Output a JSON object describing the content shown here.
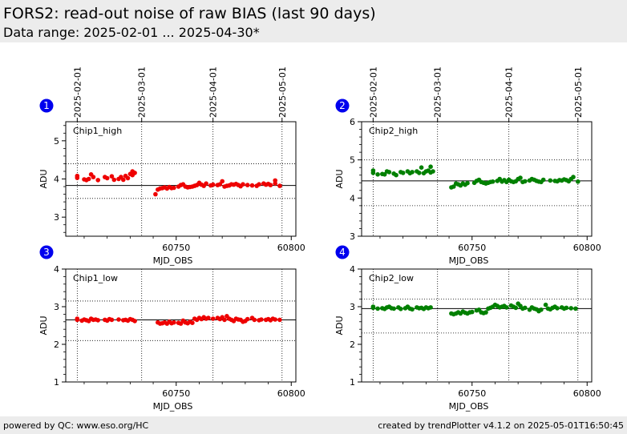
{
  "header": {
    "title": "FORS2: read-out noise of raw BIAS (last 90 days)",
    "subtitle": "Data range: 2025-02-01 ... 2025-04-30*"
  },
  "footer": {
    "left": "powered by QC: www.eso.org/HC",
    "right": "created by trendPlotter v4.1.2 on 2025-05-01T16:50:45"
  },
  "colors": {
    "chip1": "#ee0000",
    "chip2": "#008000",
    "badge": "#0000ee"
  },
  "date_ticks": [
    {
      "label": "2025-02-01",
      "mjd": 60707
    },
    {
      "label": "2025-03-01",
      "mjd": 60735
    },
    {
      "label": "2025-04-01",
      "mjd": 60766
    },
    {
      "label": "2025-05-01",
      "mjd": 60796
    }
  ],
  "chart_data": [
    {
      "type": "scatter",
      "badge": "1",
      "panel_label": "Chip1_high",
      "xlabel": "MJD_OBS",
      "ylabel": "ADU",
      "xlim": [
        60702,
        60802
      ],
      "ylim": [
        2.5,
        5.5
      ],
      "yticks": [
        3,
        4,
        5
      ],
      "xticks": [
        60750,
        60800
      ],
      "reference_lines": {
        "mean": 3.83,
        "lower": 3.49,
        "upper": 4.4
      },
      "color": "#ee0000",
      "points": [
        [
          60707,
          4.08
        ],
        [
          60707,
          4.03
        ],
        [
          60710,
          3.99
        ],
        [
          60711,
          3.97
        ],
        [
          60712,
          4.0
        ],
        [
          60713,
          4.12
        ],
        [
          60714,
          4.05
        ],
        [
          60716,
          3.97
        ],
        [
          60719,
          4.05
        ],
        [
          60720,
          4.02
        ],
        [
          60722,
          4.07
        ],
        [
          60723,
          3.98
        ],
        [
          60725,
          4.0
        ],
        [
          60726,
          4.05
        ],
        [
          60727,
          3.98
        ],
        [
          60728,
          4.08
        ],
        [
          60729,
          4.02
        ],
        [
          60730,
          4.13
        ],
        [
          60731,
          4.2
        ],
        [
          60731,
          4.1
        ],
        [
          60732,
          4.16
        ],
        [
          60741,
          3.6
        ],
        [
          60742,
          3.72
        ],
        [
          60743,
          3.75
        ],
        [
          60744,
          3.76
        ],
        [
          60745,
          3.78
        ],
        [
          60746,
          3.75
        ],
        [
          60747,
          3.79
        ],
        [
          60748,
          3.76
        ],
        [
          60749,
          3.77
        ],
        [
          60751,
          3.8
        ],
        [
          60752,
          3.84
        ],
        [
          60753,
          3.86
        ],
        [
          60754,
          3.8
        ],
        [
          60755,
          3.78
        ],
        [
          60756,
          3.79
        ],
        [
          60757,
          3.8
        ],
        [
          60758,
          3.82
        ],
        [
          60759,
          3.84
        ],
        [
          60760,
          3.9
        ],
        [
          60761,
          3.85
        ],
        [
          60762,
          3.82
        ],
        [
          60763,
          3.88
        ],
        [
          60765,
          3.83
        ],
        [
          60766,
          3.85
        ],
        [
          60768,
          3.84
        ],
        [
          60769,
          3.86
        ],
        [
          60770,
          3.94
        ],
        [
          60771,
          3.8
        ],
        [
          60772,
          3.82
        ],
        [
          60773,
          3.83
        ],
        [
          60774,
          3.86
        ],
        [
          60775,
          3.85
        ],
        [
          60776,
          3.87
        ],
        [
          60777,
          3.84
        ],
        [
          60778,
          3.81
        ],
        [
          60779,
          3.86
        ],
        [
          60781,
          3.84
        ],
        [
          60783,
          3.83
        ],
        [
          60785,
          3.82
        ],
        [
          60786,
          3.86
        ],
        [
          60788,
          3.88
        ],
        [
          60789,
          3.85
        ],
        [
          60790,
          3.87
        ],
        [
          60791,
          3.84
        ],
        [
          60793,
          3.96
        ],
        [
          60793,
          3.88
        ],
        [
          60795,
          3.82
        ]
      ]
    },
    {
      "type": "scatter",
      "badge": "2",
      "panel_label": "Chip2_high",
      "xlabel": "MJD_OBS",
      "ylabel": "ADU",
      "xlim": [
        60702,
        60802
      ],
      "ylim": [
        3,
        6
      ],
      "yticks": [
        3,
        4,
        5,
        6
      ],
      "xticks": [
        60750,
        60800
      ],
      "reference_lines": {
        "mean": 4.45,
        "lower": 3.8,
        "upper": 5.0
      },
      "color": "#008000",
      "points": [
        [
          60707,
          4.72
        ],
        [
          60707,
          4.66
        ],
        [
          60709,
          4.62
        ],
        [
          60711,
          4.63
        ],
        [
          60712,
          4.62
        ],
        [
          60713,
          4.7
        ],
        [
          60714,
          4.68
        ],
        [
          60716,
          4.64
        ],
        [
          60717,
          4.6
        ],
        [
          60719,
          4.68
        ],
        [
          60720,
          4.66
        ],
        [
          60722,
          4.7
        ],
        [
          60723,
          4.65
        ],
        [
          60724,
          4.68
        ],
        [
          60726,
          4.7
        ],
        [
          60727,
          4.66
        ],
        [
          60728,
          4.8
        ],
        [
          60729,
          4.65
        ],
        [
          60730,
          4.7
        ],
        [
          60731,
          4.72
        ],
        [
          60732,
          4.67
        ],
        [
          60732,
          4.82
        ],
        [
          60733,
          4.7
        ],
        [
          60741,
          4.28
        ],
        [
          60742,
          4.3
        ],
        [
          60743,
          4.38
        ],
        [
          60744,
          4.36
        ],
        [
          60745,
          4.33
        ],
        [
          60746,
          4.38
        ],
        [
          60747,
          4.35
        ],
        [
          60748,
          4.39
        ],
        [
          60751,
          4.4
        ],
        [
          60752,
          4.45
        ],
        [
          60753,
          4.48
        ],
        [
          60754,
          4.42
        ],
        [
          60755,
          4.4
        ],
        [
          60756,
          4.38
        ],
        [
          60757,
          4.4
        ],
        [
          60758,
          4.42
        ],
        [
          60759,
          4.43
        ],
        [
          60761,
          4.45
        ],
        [
          60762,
          4.5
        ],
        [
          60763,
          4.43
        ],
        [
          60764,
          4.47
        ],
        [
          60765,
          4.42
        ],
        [
          60766,
          4.48
        ],
        [
          60767,
          4.44
        ],
        [
          60768,
          4.42
        ],
        [
          60769,
          4.44
        ],
        [
          60770,
          4.5
        ],
        [
          60771,
          4.53
        ],
        [
          60772,
          4.42
        ],
        [
          60773,
          4.44
        ],
        [
          60775,
          4.46
        ],
        [
          60776,
          4.5
        ],
        [
          60777,
          4.48
        ],
        [
          60778,
          4.45
        ],
        [
          60779,
          4.43
        ],
        [
          60780,
          4.42
        ],
        [
          60781,
          4.48
        ],
        [
          60784,
          4.46
        ],
        [
          60786,
          4.45
        ],
        [
          60787,
          4.44
        ],
        [
          60788,
          4.47
        ],
        [
          60789,
          4.46
        ],
        [
          60790,
          4.49
        ],
        [
          60791,
          4.47
        ],
        [
          60792,
          4.44
        ],
        [
          60793,
          4.5
        ],
        [
          60794,
          4.55
        ],
        [
          60796,
          4.43
        ]
      ]
    },
    {
      "type": "scatter",
      "badge": "3",
      "panel_label": "Chip1_low",
      "xlabel": "MJD_OBS",
      "ylabel": "ADU",
      "xlim": [
        60702,
        60802
      ],
      "ylim": [
        1,
        4
      ],
      "yticks": [
        1,
        2,
        3,
        4
      ],
      "xticks": [
        60750,
        60800
      ],
      "reference_lines": {
        "mean": 2.65,
        "lower": 2.1,
        "upper": 3.15
      },
      "color": "#ee0000",
      "points": [
        [
          60707,
          2.68
        ],
        [
          60707,
          2.65
        ],
        [
          60709,
          2.63
        ],
        [
          60710,
          2.66
        ],
        [
          60711,
          2.64
        ],
        [
          60712,
          2.62
        ],
        [
          60713,
          2.68
        ],
        [
          60714,
          2.65
        ],
        [
          60715,
          2.66
        ],
        [
          60716,
          2.64
        ],
        [
          60719,
          2.65
        ],
        [
          60720,
          2.63
        ],
        [
          60721,
          2.67
        ],
        [
          60722,
          2.65
        ],
        [
          60725,
          2.66
        ],
        [
          60727,
          2.64
        ],
        [
          60728,
          2.65
        ],
        [
          60729,
          2.63
        ],
        [
          60730,
          2.67
        ],
        [
          60731,
          2.65
        ],
        [
          60732,
          2.62
        ],
        [
          60742,
          2.58
        ],
        [
          60743,
          2.55
        ],
        [
          60744,
          2.56
        ],
        [
          60745,
          2.58
        ],
        [
          60746,
          2.55
        ],
        [
          60747,
          2.6
        ],
        [
          60748,
          2.56
        ],
        [
          60749,
          2.58
        ],
        [
          60751,
          2.57
        ],
        [
          60752,
          2.55
        ],
        [
          60753,
          2.63
        ],
        [
          60754,
          2.58
        ],
        [
          60755,
          2.56
        ],
        [
          60756,
          2.6
        ],
        [
          60757,
          2.57
        ],
        [
          60758,
          2.68
        ],
        [
          60759,
          2.65
        ],
        [
          60760,
          2.7
        ],
        [
          60761,
          2.67
        ],
        [
          60762,
          2.72
        ],
        [
          60763,
          2.68
        ],
        [
          60764,
          2.7
        ],
        [
          60766,
          2.68
        ],
        [
          60768,
          2.7
        ],
        [
          60769,
          2.67
        ],
        [
          60770,
          2.72
        ],
        [
          60771,
          2.65
        ],
        [
          60772,
          2.75
        ],
        [
          60773,
          2.68
        ],
        [
          60774,
          2.65
        ],
        [
          60775,
          2.62
        ],
        [
          60776,
          2.68
        ],
        [
          60777,
          2.66
        ],
        [
          60778,
          2.65
        ],
        [
          60779,
          2.6
        ],
        [
          60780,
          2.62
        ],
        [
          60781,
          2.67
        ],
        [
          60783,
          2.7
        ],
        [
          60784,
          2.65
        ],
        [
          60786,
          2.64
        ],
        [
          60787,
          2.66
        ],
        [
          60789,
          2.65
        ],
        [
          60790,
          2.67
        ],
        [
          60791,
          2.64
        ],
        [
          60792,
          2.68
        ],
        [
          60793,
          2.66
        ],
        [
          60795,
          2.65
        ]
      ]
    },
    {
      "type": "scatter",
      "badge": "4",
      "panel_label": "Chip2_low",
      "xlabel": "MJD_OBS",
      "ylabel": "ADU",
      "xlim": [
        60702,
        60802
      ],
      "ylim": [
        1,
        4
      ],
      "yticks": [
        1,
        2,
        3,
        4
      ],
      "xticks": [
        60750,
        60800
      ],
      "reference_lines": {
        "mean": 2.95,
        "lower": 2.3,
        "upper": 3.2
      },
      "color": "#008000",
      "points": [
        [
          60707,
          3.0
        ],
        [
          60707,
          2.97
        ],
        [
          60709,
          2.95
        ],
        [
          60711,
          2.96
        ],
        [
          60712,
          2.94
        ],
        [
          60713,
          2.98
        ],
        [
          60714,
          3.0
        ],
        [
          60715,
          2.96
        ],
        [
          60716,
          2.95
        ],
        [
          60718,
          2.98
        ],
        [
          60719,
          2.94
        ],
        [
          60721,
          2.96
        ],
        [
          60722,
          3.0
        ],
        [
          60723,
          2.95
        ],
        [
          60724,
          2.93
        ],
        [
          60726,
          2.98
        ],
        [
          60727,
          2.96
        ],
        [
          60728,
          2.97
        ],
        [
          60729,
          2.94
        ],
        [
          60730,
          2.98
        ],
        [
          60731,
          2.96
        ],
        [
          60732,
          2.98
        ],
        [
          60741,
          2.82
        ],
        [
          60742,
          2.8
        ],
        [
          60743,
          2.82
        ],
        [
          60744,
          2.85
        ],
        [
          60745,
          2.82
        ],
        [
          60746,
          2.87
        ],
        [
          60747,
          2.84
        ],
        [
          60748,
          2.82
        ],
        [
          60749,
          2.85
        ],
        [
          60750,
          2.86
        ],
        [
          60752,
          2.9
        ],
        [
          60753,
          2.92
        ],
        [
          60754,
          2.85
        ],
        [
          60755,
          2.83
        ],
        [
          60756,
          2.85
        ],
        [
          60757,
          2.95
        ],
        [
          60758,
          2.97
        ],
        [
          60759,
          3.0
        ],
        [
          60760,
          3.05
        ],
        [
          60761,
          3.02
        ],
        [
          60762,
          2.98
        ],
        [
          60763,
          3.0
        ],
        [
          60764,
          3.02
        ],
        [
          60765,
          2.98
        ],
        [
          60767,
          3.03
        ],
        [
          60768,
          3.0
        ],
        [
          60769,
          2.97
        ],
        [
          60770,
          3.08
        ],
        [
          60771,
          3.02
        ],
        [
          60772,
          2.95
        ],
        [
          60773,
          2.97
        ],
        [
          60775,
          2.92
        ],
        [
          60776,
          2.98
        ],
        [
          60777,
          2.95
        ],
        [
          60778,
          2.93
        ],
        [
          60779,
          2.88
        ],
        [
          60780,
          2.92
        ],
        [
          60782,
          3.05
        ],
        [
          60783,
          2.95
        ],
        [
          60784,
          2.93
        ],
        [
          60785,
          2.97
        ],
        [
          60786,
          3.0
        ],
        [
          60787,
          2.96
        ],
        [
          60789,
          2.98
        ],
        [
          60790,
          2.95
        ],
        [
          60791,
          2.97
        ],
        [
          60793,
          2.96
        ],
        [
          60795,
          2.95
        ]
      ]
    }
  ]
}
